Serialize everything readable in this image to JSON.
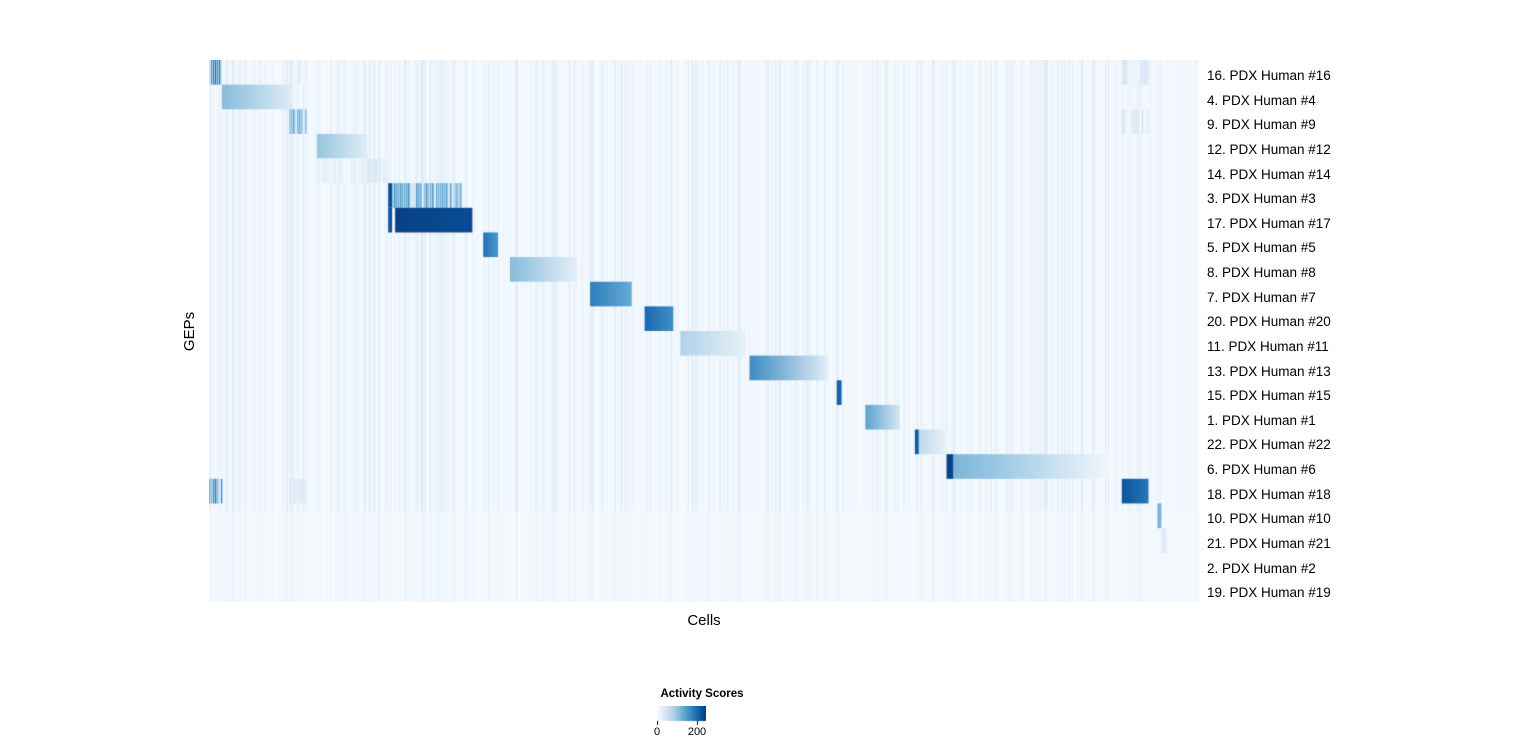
{
  "chart_data": {
    "type": "heatmap",
    "xlabel": "Cells",
    "ylabel": "GEPs",
    "colormap": "Blues",
    "colorbar": {
      "title": "Activity Scores",
      "tick_values": [
        0,
        200
      ],
      "tick_labels": [
        "0",
        "200"
      ],
      "display_max": 245
    },
    "noise": {
      "seed": 11,
      "global_count": 700,
      "global_v": [
        3,
        16
      ],
      "band_density": 3,
      "band_v": [
        6,
        38
      ]
    },
    "column_bands": [
      [
        0.0,
        0.013
      ],
      [
        0.013,
        0.084
      ],
      [
        0.081,
        0.099
      ],
      [
        0.109,
        0.16
      ],
      [
        0.16,
        0.181
      ],
      [
        0.181,
        0.256
      ],
      [
        0.19,
        0.266
      ],
      [
        0.277,
        0.292
      ],
      [
        0.304,
        0.372
      ],
      [
        0.385,
        0.427
      ],
      [
        0.44,
        0.469
      ],
      [
        0.476,
        0.542
      ],
      [
        0.546,
        0.625
      ],
      [
        0.634,
        0.639
      ],
      [
        0.663,
        0.698
      ],
      [
        0.713,
        0.745
      ],
      [
        0.745,
        0.91
      ],
      [
        0.922,
        0.949
      ],
      [
        0.958,
        0.962
      ]
    ],
    "rows": [
      {
        "label": "16. PDX Human #16",
        "segments": [
          {
            "x0": 0.0,
            "x1": 0.013,
            "v0": 215,
            "v1": 215,
            "style": "striped"
          },
          {
            "x0": 0.081,
            "x1": 0.099,
            "v0": 45,
            "v1": 45,
            "style": "striped"
          },
          {
            "x0": 0.922,
            "x1": 0.949,
            "v0": 60,
            "v1": 60,
            "style": "striped"
          }
        ]
      },
      {
        "label": "4. PDX Human #4",
        "segments": [
          {
            "x0": 0.013,
            "x1": 0.084,
            "v0": 110,
            "v1": 30,
            "style": "fade"
          }
        ]
      },
      {
        "label": "9. PDX Human #9",
        "segments": [
          {
            "x0": 0.081,
            "x1": 0.099,
            "v0": 185,
            "v1": 130,
            "style": "striped"
          },
          {
            "x0": 0.922,
            "x1": 0.949,
            "v0": 50,
            "v1": 50,
            "style": "striped"
          }
        ]
      },
      {
        "label": "12. PDX Human #12",
        "segments": [
          {
            "x0": 0.109,
            "x1": 0.16,
            "v0": 100,
            "v1": 28,
            "style": "fade"
          }
        ]
      },
      {
        "label": "14. PDX Human #14",
        "segments": [
          {
            "x0": 0.109,
            "x1": 0.16,
            "v0": 35,
            "v1": 35,
            "style": "striped"
          },
          {
            "x0": 0.16,
            "x1": 0.181,
            "v0": 60,
            "v1": 35,
            "style": "striped"
          }
        ]
      },
      {
        "label": "3. PDX Human #3",
        "segments": [
          {
            "x0": 0.181,
            "x1": 0.185,
            "v0": 225,
            "v1": 225,
            "style": "solid"
          },
          {
            "x0": 0.185,
            "x1": 0.256,
            "v0": 190,
            "v1": 150,
            "style": "striped"
          }
        ]
      },
      {
        "label": "17. PDX Human #17",
        "segments": [
          {
            "x0": 0.181,
            "x1": 0.185,
            "v0": 220,
            "v1": 220,
            "style": "solid"
          },
          {
            "x0": 0.188,
            "x1": 0.266,
            "v0": 238,
            "v1": 228,
            "style": "solid"
          }
        ]
      },
      {
        "label": "5. PDX Human #5",
        "segments": [
          {
            "x0": 0.277,
            "x1": 0.292,
            "v0": 190,
            "v1": 150,
            "style": "solid"
          }
        ]
      },
      {
        "label": "8. PDX Human #8",
        "segments": [
          {
            "x0": 0.304,
            "x1": 0.372,
            "v0": 110,
            "v1": 22,
            "style": "fade"
          }
        ]
      },
      {
        "label": "7. PDX Human #7",
        "segments": [
          {
            "x0": 0.385,
            "x1": 0.427,
            "v0": 180,
            "v1": 130,
            "style": "solid"
          }
        ]
      },
      {
        "label": "20. PDX Human #20",
        "segments": [
          {
            "x0": 0.44,
            "x1": 0.469,
            "v0": 200,
            "v1": 160,
            "style": "solid"
          }
        ]
      },
      {
        "label": "11. PDX Human #11",
        "segments": [
          {
            "x0": 0.476,
            "x1": 0.542,
            "v0": 80,
            "v1": 20,
            "style": "fade"
          }
        ]
      },
      {
        "label": "13. PDX Human #13",
        "segments": [
          {
            "x0": 0.546,
            "x1": 0.625,
            "v0": 165,
            "v1": 28,
            "style": "fade"
          }
        ]
      },
      {
        "label": "15. PDX Human #15",
        "segments": [
          {
            "x0": 0.634,
            "x1": 0.639,
            "v0": 205,
            "v1": 205,
            "style": "solid"
          }
        ]
      },
      {
        "label": "1. PDX Human #1",
        "segments": [
          {
            "x0": 0.663,
            "x1": 0.698,
            "v0": 140,
            "v1": 40,
            "style": "fade"
          }
        ]
      },
      {
        "label": "22. PDX Human #22",
        "segments": [
          {
            "x0": 0.713,
            "x1": 0.717,
            "v0": 210,
            "v1": 210,
            "style": "solid"
          },
          {
            "x0": 0.717,
            "x1": 0.745,
            "v0": 70,
            "v1": 16,
            "style": "fade"
          }
        ]
      },
      {
        "label": "6. PDX Human #6",
        "segments": [
          {
            "x0": 0.745,
            "x1": 0.752,
            "v0": 238,
            "v1": 238,
            "style": "solid"
          },
          {
            "x0": 0.752,
            "x1": 0.91,
            "v0": 118,
            "v1": 6,
            "style": "fade"
          }
        ]
      },
      {
        "label": "18. PDX Human #18",
        "segments": [
          {
            "x0": 0.0,
            "x1": 0.013,
            "v0": 190,
            "v1": 190,
            "style": "striped"
          },
          {
            "x0": 0.081,
            "x1": 0.099,
            "v0": 55,
            "v1": 55,
            "style": "striped"
          },
          {
            "x0": 0.922,
            "x1": 0.949,
            "v0": 220,
            "v1": 185,
            "style": "solid"
          }
        ]
      },
      {
        "label": "10. PDX Human #10",
        "segments": [
          {
            "x0": 0.958,
            "x1": 0.962,
            "v0": 120,
            "v1": 120,
            "style": "solid"
          }
        ]
      },
      {
        "label": "21. PDX Human #21",
        "segments": [
          {
            "x0": 0.962,
            "x1": 0.967,
            "v0": 30,
            "v1": 30,
            "style": "solid"
          }
        ]
      },
      {
        "label": "2. PDX Human #2",
        "segments": []
      },
      {
        "label": "19. PDX Human #19",
        "segments": []
      }
    ]
  }
}
